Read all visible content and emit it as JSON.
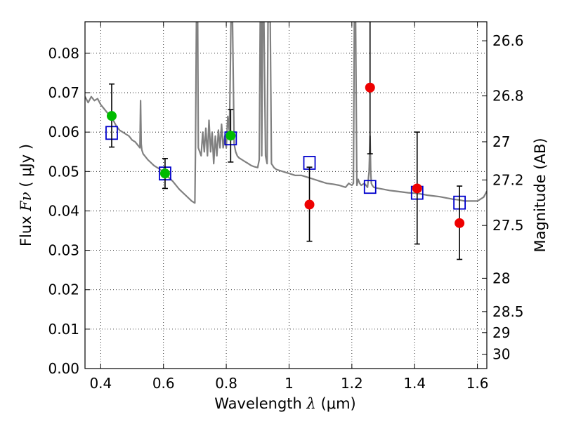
{
  "chart_data": {
    "type": "scatter",
    "xlabel_prefix": "Wavelength",
    "xlabel_symbol": "λ",
    "xlabel_unit": "(μm)",
    "ylabel_prefix": "Flux",
    "ylabel_symbol": "Fν",
    "ylabel_unit": "( μJy )",
    "y2label": "Magnitude (AB)",
    "xlim": [
      0.35,
      1.63
    ],
    "ylim": [
      0.0,
      0.088
    ],
    "x_ticks": [
      0.4,
      0.6,
      0.8,
      1.0,
      1.2,
      1.4,
      1.6
    ],
    "x_tick_labels": [
      "0.4",
      "0.6",
      "0.8",
      "1",
      "1.2",
      "1.4",
      "1.6"
    ],
    "y_ticks": [
      0.0,
      0.01,
      0.02,
      0.03,
      0.04,
      0.05,
      0.06,
      0.07,
      0.08
    ],
    "y_tick_labels": [
      "0.00",
      "0.01",
      "0.02",
      "0.03",
      "0.04",
      "0.05",
      "0.06",
      "0.07",
      "0.08"
    ],
    "mag_ticks": [
      26.6,
      26.8,
      27.0,
      27.2,
      27.5,
      28.0,
      28.5,
      29.0,
      30.0
    ],
    "mag_tick_labels": [
      "26.6",
      "26.8",
      "27",
      "27.2",
      "27.5",
      "28",
      "28.5",
      "29",
      "30"
    ],
    "grid": true,
    "colors": {
      "model": "#808080",
      "detection": "#00bb00",
      "nondetection": "#ee0000",
      "model_photometry": "#0000cc",
      "errorbar": "#000000"
    },
    "series": [
      {
        "kind": "observed-green",
        "points": [
          {
            "x": 0.435,
            "y": 0.0641,
            "yerr_low": 0.0562,
            "yerr_high": 0.0722
          },
          {
            "x": 0.605,
            "y": 0.0495,
            "yerr_low": 0.0457,
            "yerr_high": 0.0533
          },
          {
            "x": 0.814,
            "y": 0.0591,
            "yerr_low": 0.0524,
            "yerr_high": 0.0657
          }
        ]
      },
      {
        "kind": "observed-red",
        "points": [
          {
            "x": 1.065,
            "y": 0.0416,
            "yerr_low": 0.0323,
            "yerr_high": 0.0511
          },
          {
            "x": 1.258,
            "y": 0.0713,
            "yerr_low": 0.0545,
            "yerr_high": 0.0881
          },
          {
            "x": 1.408,
            "y": 0.0457,
            "yerr_low": 0.0316,
            "yerr_high": 0.06
          },
          {
            "x": 1.543,
            "y": 0.0369,
            "yerr_low": 0.0277,
            "yerr_high": 0.0463
          }
        ]
      },
      {
        "kind": "model-photometry",
        "points": [
          {
            "x": 0.435,
            "y": 0.0598
          },
          {
            "x": 0.605,
            "y": 0.0495
          },
          {
            "x": 0.814,
            "y": 0.0584
          },
          {
            "x": 1.065,
            "y": 0.0522
          },
          {
            "x": 1.258,
            "y": 0.0461
          },
          {
            "x": 1.408,
            "y": 0.0446
          },
          {
            "x": 1.543,
            "y": 0.0421
          }
        ]
      }
    ],
    "model_spectrum": {
      "x": [
        0.35,
        0.36,
        0.37,
        0.38,
        0.39,
        0.4,
        0.41,
        0.42,
        0.43,
        0.44,
        0.45,
        0.46,
        0.47,
        0.48,
        0.49,
        0.5,
        0.51,
        0.52,
        0.525,
        0.527,
        0.529,
        0.531,
        0.535,
        0.55,
        0.57,
        0.59,
        0.61,
        0.63,
        0.65,
        0.67,
        0.69,
        0.7,
        0.702,
        0.705,
        0.707,
        0.709,
        0.711,
        0.72,
        0.725,
        0.73,
        0.735,
        0.74,
        0.745,
        0.75,
        0.755,
        0.76,
        0.765,
        0.77,
        0.775,
        0.78,
        0.785,
        0.79,
        0.795,
        0.8,
        0.805,
        0.81,
        0.815,
        0.82,
        0.825,
        0.83,
        0.835,
        0.84,
        0.85,
        0.86,
        0.87,
        0.88,
        0.89,
        0.9,
        0.905,
        0.908,
        0.911,
        0.913,
        0.916,
        0.92,
        0.925,
        0.93,
        0.933,
        0.936,
        0.94,
        0.944,
        0.948,
        0.952,
        0.96,
        0.98,
        1.0,
        1.02,
        1.04,
        1.06,
        1.08,
        1.1,
        1.12,
        1.14,
        1.16,
        1.18,
        1.19,
        1.2,
        1.205,
        1.208,
        1.212,
        1.216,
        1.22,
        1.225,
        1.23,
        1.24,
        1.25,
        1.255,
        1.258,
        1.26,
        1.262,
        1.265,
        1.27,
        1.28,
        1.3,
        1.32,
        1.34,
        1.36,
        1.38,
        1.4,
        1.42,
        1.44,
        1.46,
        1.48,
        1.5,
        1.52,
        1.54,
        1.56,
        1.58,
        1.6,
        1.62,
        1.63
      ],
      "y": [
        0.069,
        0.0675,
        0.069,
        0.068,
        0.0685,
        0.067,
        0.066,
        0.065,
        0.064,
        0.063,
        0.0615,
        0.0605,
        0.06,
        0.0595,
        0.059,
        0.058,
        0.0575,
        0.0565,
        0.056,
        0.068,
        0.057,
        0.0555,
        0.0545,
        0.053,
        0.0515,
        0.0505,
        0.049,
        0.0475,
        0.0455,
        0.044,
        0.0425,
        0.042,
        0.056,
        0.088,
        0.088,
        0.088,
        0.056,
        0.054,
        0.06,
        0.055,
        0.061,
        0.054,
        0.063,
        0.055,
        0.06,
        0.052,
        0.059,
        0.054,
        0.0605,
        0.056,
        0.062,
        0.056,
        0.059,
        0.056,
        0.064,
        0.06,
        0.088,
        0.088,
        0.057,
        0.055,
        0.054,
        0.0535,
        0.053,
        0.0525,
        0.052,
        0.0515,
        0.0512,
        0.051,
        0.053,
        0.088,
        0.088,
        0.054,
        0.088,
        0.088,
        0.054,
        0.052,
        0.088,
        0.088,
        0.088,
        0.052,
        0.0515,
        0.051,
        0.0505,
        0.05,
        0.0495,
        0.049,
        0.049,
        0.0485,
        0.048,
        0.0475,
        0.047,
        0.0468,
        0.0465,
        0.046,
        0.047,
        0.0465,
        0.047,
        0.088,
        0.088,
        0.0465,
        0.048,
        0.047,
        0.0465,
        0.047,
        0.046,
        0.05,
        0.059,
        0.05,
        0.047,
        0.0465,
        0.046,
        0.0458,
        0.0455,
        0.0452,
        0.045,
        0.0448,
        0.0446,
        0.0445,
        0.0443,
        0.044,
        0.0438,
        0.0436,
        0.0433,
        0.043,
        0.0428,
        0.0425,
        0.0425,
        0.0425,
        0.0435,
        0.045
      ]
    }
  }
}
